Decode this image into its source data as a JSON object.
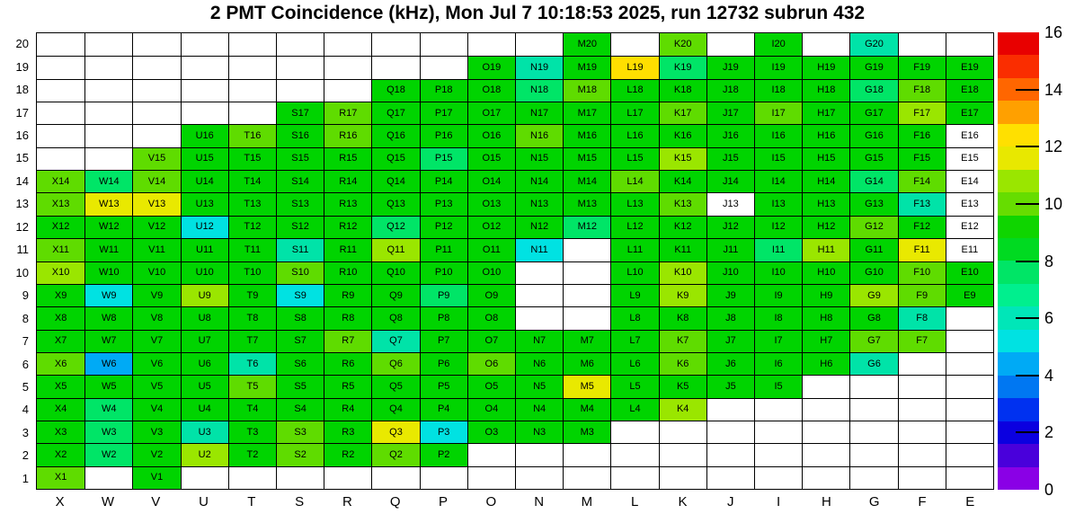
{
  "chart_data": {
    "type": "heatmap",
    "title": "2 PMT Coincidence (kHz), Mon Jul  7 10:18:53 2025, run 12732 subrun 432",
    "columns": [
      "X",
      "W",
      "V",
      "U",
      "T",
      "S",
      "R",
      "Q",
      "P",
      "O",
      "N",
      "M",
      "L",
      "K",
      "J",
      "I",
      "H",
      "G",
      "F",
      "E"
    ],
    "rows": [
      20,
      19,
      18,
      17,
      16,
      15,
      14,
      13,
      12,
      11,
      10,
      9,
      8,
      7,
      6,
      5,
      4,
      3,
      2,
      1
    ],
    "palette": {
      "g": "#00d400",
      "yg": "#5fdc00",
      "lyg": "#9ae600",
      "y": "#e9e900",
      "gold": "#ffdf00",
      "sg": "#00e567",
      "tg": "#00e3a8",
      "cy": "#00e2e2",
      "lb": "#00aaf5",
      "w": "#ffffff"
    },
    "cells": [
      [
        "",
        "",
        "",
        "",
        "",
        "",
        "",
        "",
        "",
        "",
        "",
        "g",
        "",
        "yg",
        "",
        "g",
        "",
        "tg",
        "",
        ""
      ],
      [
        "",
        "",
        "",
        "",
        "",
        "",
        "",
        "",
        "",
        "g",
        "tg",
        "g",
        "gold",
        "sg",
        "g",
        "g",
        "g",
        "g",
        "g",
        "g"
      ],
      [
        "",
        "",
        "",
        "",
        "",
        "",
        "",
        "g",
        "g",
        "g",
        "sg",
        "yg",
        "g",
        "g",
        "g",
        "g",
        "g",
        "sg",
        "yg",
        "g"
      ],
      [
        "",
        "",
        "",
        "",
        "",
        "g",
        "yg",
        "g",
        "g",
        "g",
        "g",
        "g",
        "g",
        "yg",
        "g",
        "yg",
        "g",
        "g",
        "lyg",
        "g"
      ],
      [
        "",
        "",
        "",
        "g",
        "yg",
        "g",
        "yg",
        "g",
        "g",
        "g",
        "yg",
        "g",
        "g",
        "g",
        "g",
        "g",
        "g",
        "g",
        "g",
        "w"
      ],
      [
        "",
        "",
        "yg",
        "g",
        "g",
        "g",
        "g",
        "g",
        "sg",
        "g",
        "g",
        "g",
        "g",
        "lyg",
        "g",
        "g",
        "g",
        "g",
        "g",
        "w"
      ],
      [
        "yg",
        "sg",
        "yg",
        "g",
        "g",
        "g",
        "g",
        "g",
        "g",
        "g",
        "g",
        "g",
        "yg",
        "g",
        "g",
        "g",
        "g",
        "sg",
        "yg",
        "w"
      ],
      [
        "yg",
        "y",
        "y",
        "g",
        "g",
        "g",
        "g",
        "g",
        "g",
        "g",
        "g",
        "g",
        "g",
        "yg",
        "w",
        "g",
        "g",
        "g",
        "tg",
        "w"
      ],
      [
        "g",
        "g",
        "g",
        "cy",
        "g",
        "g",
        "g",
        "sg",
        "g",
        "g",
        "g",
        "sg",
        "g",
        "g",
        "g",
        "g",
        "g",
        "yg",
        "g",
        "w"
      ],
      [
        "yg",
        "g",
        "g",
        "g",
        "g",
        "tg",
        "g",
        "lyg",
        "g",
        "g",
        "cy",
        "",
        "g",
        "g",
        "g",
        "sg",
        "lyg",
        "g",
        "y",
        "w"
      ],
      [
        "lyg",
        "g",
        "g",
        "g",
        "g",
        "yg",
        "g",
        "g",
        "g",
        "g",
        "",
        "",
        "g",
        "lyg",
        "g",
        "g",
        "g",
        "g",
        "yg",
        "g"
      ],
      [
        "g",
        "cy",
        "g",
        "lyg",
        "g",
        "cy",
        "g",
        "g",
        "sg",
        "g",
        "",
        "",
        "g",
        "lyg",
        "g",
        "g",
        "g",
        "lyg",
        "yg",
        "g"
      ],
      [
        "g",
        "g",
        "g",
        "g",
        "g",
        "g",
        "g",
        "g",
        "g",
        "g",
        "",
        "",
        "g",
        "g",
        "g",
        "g",
        "g",
        "g",
        "tg",
        ""
      ],
      [
        "g",
        "g",
        "g",
        "g",
        "g",
        "g",
        "yg",
        "tg",
        "g",
        "g",
        "g",
        "g",
        "g",
        "yg",
        "g",
        "g",
        "g",
        "yg",
        "yg",
        ""
      ],
      [
        "yg",
        "lb",
        "g",
        "g",
        "tg",
        "g",
        "g",
        "yg",
        "g",
        "yg",
        "g",
        "g",
        "g",
        "yg",
        "g",
        "g",
        "g",
        "tg",
        "",
        ""
      ],
      [
        "g",
        "g",
        "g",
        "g",
        "yg",
        "g",
        "g",
        "g",
        "g",
        "g",
        "g",
        "y",
        "g",
        "g",
        "g",
        "g",
        "",
        "",
        "",
        ""
      ],
      [
        "g",
        "sg",
        "g",
        "g",
        "g",
        "g",
        "g",
        "g",
        "g",
        "g",
        "g",
        "g",
        "g",
        "lyg",
        "",
        "",
        "",
        "",
        "",
        ""
      ],
      [
        "g",
        "sg",
        "g",
        "tg",
        "g",
        "yg",
        "g",
        "y",
        "cy",
        "g",
        "g",
        "g",
        "",
        "",
        "",
        "",
        "",
        "",
        "",
        ""
      ],
      [
        "g",
        "sg",
        "g",
        "lyg",
        "g",
        "yg",
        "g",
        "yg",
        "g",
        "",
        "",
        "",
        "",
        "",
        "",
        "",
        "",
        "",
        "",
        ""
      ],
      [
        "yg",
        "",
        "g",
        "",
        "",
        "",
        "",
        "",
        "",
        "",
        "",
        "",
        "",
        "",
        "",
        "",
        "",
        "",
        "",
        ""
      ]
    ],
    "colorbar": {
      "min": 0,
      "max": 16,
      "tick_labels": [
        0,
        2,
        4,
        6,
        8,
        10,
        12,
        14,
        16
      ],
      "bands_bottom_to_top": [
        "#8a00e6",
        "#4900db",
        "#0b00e0",
        "#0031f0",
        "#0077f2",
        "#00aaf5",
        "#00e2e2",
        "#00e6b8",
        "#00ef8e",
        "#00e566",
        "#00da21",
        "#0fd500",
        "#66dd00",
        "#9ae600",
        "#e8e800",
        "#ffe000",
        "#ffa000",
        "#ff6600",
        "#fa2d00",
        "#e80000"
      ]
    }
  }
}
